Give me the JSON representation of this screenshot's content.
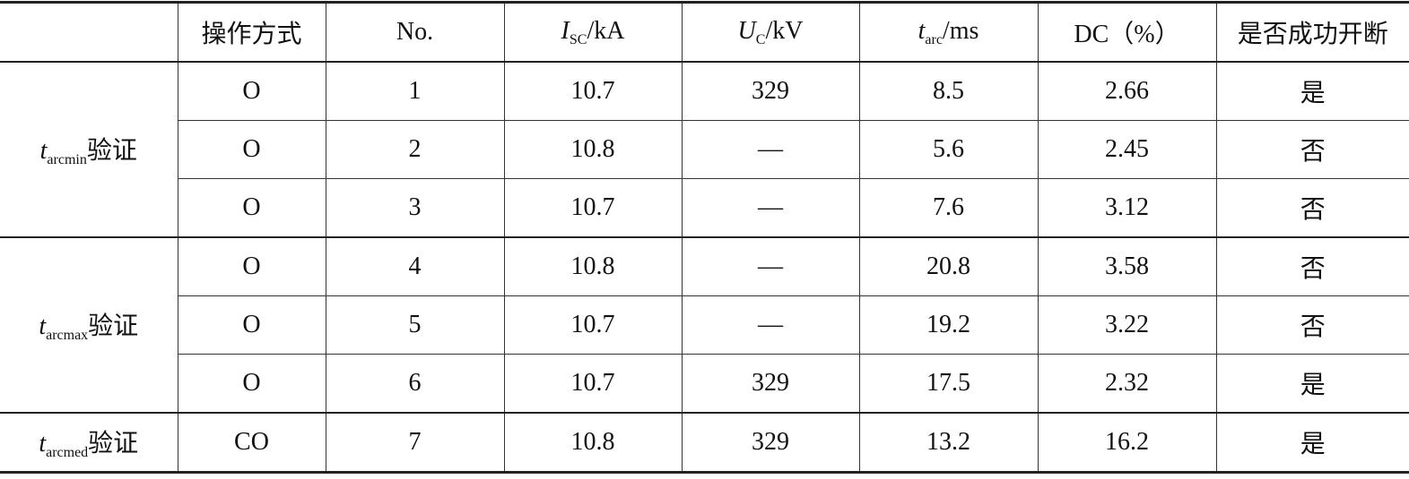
{
  "table": {
    "header": [
      "操作方式",
      "No.",
      {
        "symbol": "I",
        "subscript": "SC",
        "unit": "/kA"
      },
      {
        "symbol": "U",
        "subscript": "C",
        "unit": "/kV"
      },
      {
        "symbol": "t",
        "subscript": "arc",
        "unit": "/ms"
      },
      "DC（%）",
      "是否成功开断"
    ],
    "groups": [
      {
        "label": {
          "symbol": "t",
          "subscript": "arcmin",
          "suffix": "验证"
        },
        "rows": [
          [
            "O",
            1,
            10.7,
            329,
            8.5,
            2.66,
            "是"
          ],
          [
            "O",
            2,
            10.8,
            "—",
            5.6,
            2.45,
            "否"
          ],
          [
            "O",
            3,
            10.7,
            "—",
            7.6,
            3.12,
            "否"
          ]
        ]
      },
      {
        "label": {
          "symbol": "t",
          "subscript": "arcmax",
          "suffix": "验证"
        },
        "rows": [
          [
            "O",
            4,
            10.8,
            "—",
            20.8,
            3.58,
            "否"
          ],
          [
            "O",
            5,
            10.7,
            "—",
            19.2,
            3.22,
            "否"
          ],
          [
            "O",
            6,
            10.7,
            329,
            17.5,
            2.32,
            "是"
          ]
        ]
      },
      {
        "label": {
          "symbol": "t",
          "subscript": "arcmed",
          "suffix": "验证"
        },
        "rows": [
          [
            "CO",
            7,
            10.8,
            329,
            13.2,
            16.2,
            "是"
          ]
        ]
      }
    ]
  }
}
